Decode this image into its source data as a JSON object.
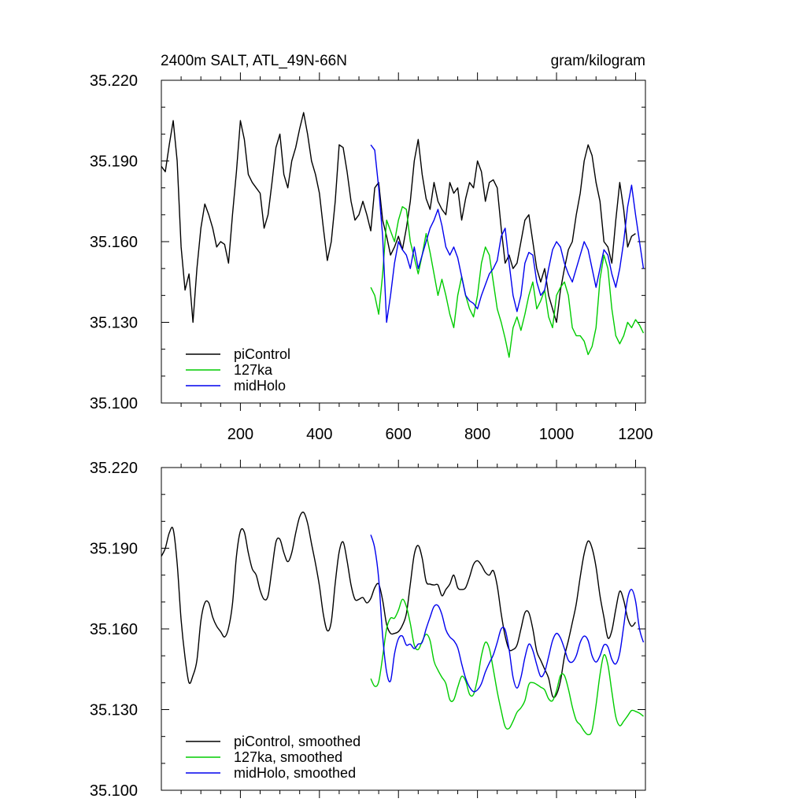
{
  "chart_data": [
    {
      "type": "line",
      "title_left": "2400m SALT, ATL_49N-66N",
      "title_right": "gram/kilogram",
      "xlim": [
        0,
        1225
      ],
      "ylim": [
        35.1,
        35.22
      ],
      "yticks": [
        35.1,
        35.13,
        35.16,
        35.19,
        35.22
      ],
      "ytick_labels": [
        "35.100",
        "35.130",
        "35.160",
        "35.190",
        "35.220"
      ],
      "xticks": [
        200,
        400,
        600,
        800,
        1000,
        1200
      ],
      "xtick_labels": [
        "200",
        "400",
        "600",
        "800",
        "1000",
        "1200"
      ],
      "legend": [
        "piControl",
        "127ka",
        "midHolo"
      ],
      "series": [
        {
          "name": "piControl",
          "color": "#000000",
          "x": [
            0,
            10,
            20,
            30,
            40,
            50,
            60,
            70,
            80,
            90,
            100,
            110,
            120,
            130,
            140,
            150,
            160,
            170,
            180,
            190,
            200,
            210,
            220,
            230,
            240,
            250,
            260,
            270,
            280,
            290,
            300,
            310,
            320,
            330,
            340,
            350,
            360,
            370,
            380,
            390,
            400,
            410,
            420,
            430,
            440,
            450,
            460,
            470,
            480,
            490,
            500,
            510,
            520,
            530,
            540,
            550,
            560,
            570,
            580,
            590,
            600,
            610,
            620,
            630,
            640,
            650,
            660,
            670,
            680,
            690,
            700,
            710,
            720,
            730,
            740,
            750,
            760,
            770,
            780,
            790,
            800,
            810,
            820,
            830,
            840,
            850,
            860,
            870,
            880,
            890,
            900,
            910,
            920,
            930,
            940,
            950,
            960,
            970,
            980,
            990,
            1000,
            1010,
            1020,
            1030,
            1040,
            1050,
            1060,
            1070,
            1080,
            1090,
            1100,
            1110,
            1120,
            1130,
            1140,
            1150,
            1160,
            1170,
            1180,
            1190,
            1200
          ],
          "y": [
            35.188,
            35.186,
            35.196,
            35.205,
            35.19,
            35.158,
            35.142,
            35.148,
            35.13,
            35.15,
            35.165,
            35.174,
            35.17,
            35.165,
            35.158,
            35.16,
            35.159,
            35.152,
            35.17,
            35.186,
            35.205,
            35.198,
            35.185,
            35.182,
            35.18,
            35.178,
            35.165,
            35.17,
            35.182,
            35.195,
            35.2,
            35.185,
            35.18,
            35.19,
            35.195,
            35.202,
            35.208,
            35.2,
            35.19,
            35.185,
            35.178,
            35.165,
            35.153,
            35.16,
            35.175,
            35.196,
            35.195,
            35.186,
            35.175,
            35.168,
            35.17,
            35.175,
            35.17,
            35.164,
            35.18,
            35.182,
            35.168,
            35.162,
            35.155,
            35.158,
            35.162,
            35.157,
            35.165,
            35.175,
            35.19,
            35.198,
            35.185,
            35.176,
            35.172,
            35.182,
            35.175,
            35.172,
            35.17,
            35.182,
            35.178,
            35.18,
            35.168,
            35.176,
            35.182,
            35.18,
            35.19,
            35.186,
            35.175,
            35.182,
            35.183,
            35.18,
            35.165,
            35.152,
            35.155,
            35.15,
            35.152,
            35.16,
            35.168,
            35.17,
            35.16,
            35.15,
            35.145,
            35.15,
            35.14,
            35.135,
            35.13,
            35.142,
            35.15,
            35.157,
            35.16,
            35.17,
            35.178,
            35.19,
            35.196,
            35.192,
            35.182,
            35.175,
            35.16,
            35.158,
            35.152,
            35.168,
            35.182,
            35.172,
            35.158,
            35.162,
            35.163
          ]
        },
        {
          "name": "127ka",
          "color": "#00cc00",
          "x": [
            530,
            540,
            550,
            560,
            570,
            580,
            590,
            600,
            610,
            620,
            630,
            640,
            650,
            660,
            670,
            680,
            690,
            700,
            710,
            720,
            730,
            740,
            750,
            760,
            770,
            780,
            790,
            800,
            810,
            820,
            830,
            840,
            850,
            860,
            870,
            880,
            890,
            900,
            910,
            920,
            930,
            940,
            950,
            960,
            970,
            980,
            990,
            1000,
            1010,
            1020,
            1030,
            1040,
            1050,
            1060,
            1070,
            1080,
            1090,
            1100,
            1110,
            1120,
            1130,
            1140,
            1150,
            1160,
            1170,
            1180,
            1190,
            1200,
            1210,
            1220
          ],
          "y": [
            35.143,
            35.14,
            35.133,
            35.148,
            35.168,
            35.164,
            35.16,
            35.168,
            35.173,
            35.172,
            35.16,
            35.154,
            35.148,
            35.155,
            35.163,
            35.156,
            35.148,
            35.14,
            35.146,
            35.14,
            35.133,
            35.128,
            35.14,
            35.147,
            35.14,
            35.135,
            35.132,
            35.14,
            35.152,
            35.158,
            35.155,
            35.145,
            35.135,
            35.13,
            35.124,
            35.117,
            35.128,
            35.132,
            35.127,
            35.133,
            35.14,
            35.145,
            35.135,
            35.138,
            35.142,
            35.132,
            35.128,
            35.14,
            35.143,
            35.145,
            35.14,
            35.128,
            35.125,
            35.125,
            35.123,
            35.118,
            35.121,
            35.128,
            35.146,
            35.155,
            35.15,
            35.135,
            35.125,
            35.122,
            35.125,
            35.13,
            35.128,
            35.131,
            35.129,
            35.126
          ]
        },
        {
          "name": "midHolo",
          "color": "#0000ee",
          "x": [
            530,
            540,
            550,
            560,
            570,
            580,
            590,
            600,
            610,
            620,
            630,
            640,
            650,
            660,
            670,
            680,
            690,
            700,
            710,
            720,
            730,
            740,
            750,
            760,
            770,
            780,
            790,
            800,
            810,
            820,
            830,
            840,
            850,
            860,
            870,
            880,
            890,
            900,
            910,
            920,
            930,
            940,
            950,
            960,
            970,
            980,
            990,
            1000,
            1010,
            1020,
            1030,
            1040,
            1050,
            1060,
            1070,
            1080,
            1090,
            1100,
            1110,
            1120,
            1130,
            1140,
            1150,
            1160,
            1170,
            1180,
            1190,
            1200,
            1210,
            1220
          ],
          "y": [
            35.196,
            35.194,
            35.18,
            35.162,
            35.13,
            35.14,
            35.152,
            35.16,
            35.157,
            35.155,
            35.15,
            35.158,
            35.15,
            35.155,
            35.16,
            35.165,
            35.168,
            35.172,
            35.166,
            35.158,
            35.155,
            35.158,
            35.154,
            35.147,
            35.14,
            35.138,
            35.137,
            35.135,
            35.14,
            35.144,
            35.148,
            35.15,
            35.153,
            35.162,
            35.165,
            35.152,
            35.14,
            35.134,
            35.14,
            35.152,
            35.156,
            35.155,
            35.145,
            35.14,
            35.142,
            35.15,
            35.157,
            35.16,
            35.158,
            35.152,
            35.148,
            35.145,
            35.15,
            35.155,
            35.16,
            35.157,
            35.15,
            35.143,
            35.15,
            35.157,
            35.155,
            35.148,
            35.143,
            35.15,
            35.16,
            35.173,
            35.181,
            35.17,
            35.16,
            35.15
          ]
        }
      ]
    },
    {
      "type": "line",
      "xlim": [
        0,
        1225
      ],
      "ylim": [
        35.1,
        35.22
      ],
      "yticks": [
        35.1,
        35.13,
        35.16,
        35.19,
        35.22
      ],
      "ytick_labels": [
        "35.100",
        "35.130",
        "35.160",
        "35.190",
        "35.220"
      ],
      "xticks": [
        200,
        400,
        600,
        800,
        1000,
        1200
      ],
      "legend": [
        "piControl, smoothed",
        "127ka, smoothed",
        "midHolo, smoothed"
      ],
      "series_note": "smoothed versions of the same three series (same values, drawn smoothly)"
    }
  ]
}
